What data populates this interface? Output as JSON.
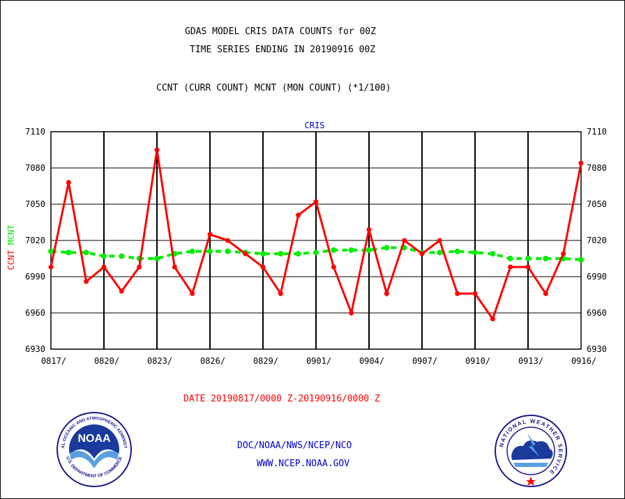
{
  "header": {
    "title_line1": "GDAS MODEL CRIS DATA COUNTS for 00Z",
    "title_line2": "TIME SERIES ENDING IN 20190916 00Z",
    "subtitle": "CCNT (CURR COUNT) MCNT (MON COUNT) (*1/100)"
  },
  "footer": {
    "date_range": "DATE 20190817/0000 Z-20190916/0000 Z",
    "org": "DOC/NOAA/NWS/NCEP/NCO",
    "url": "WWW.NCEP.NOAA.GOV"
  },
  "logos": {
    "noaa_text": "NOAA",
    "noaa_ring_top": "NATIONAL OCEANIC AND ATMOSPHERIC ADMINISTRATION",
    "noaa_ring_bottom": "U.S. DEPARTMENT OF COMMERCE",
    "nws_ring": "NATIONAL WEATHER SERVICE"
  },
  "colors": {
    "ccnt": "#ff0000",
    "mcnt": "#00ee00",
    "panel_title": "#0000cc",
    "footer_blue": "#0000cc",
    "date_red": "#ff0000"
  },
  "chart_data": {
    "type": "line",
    "title": "CRIS",
    "ylabel_series": [
      "CCNT",
      "MCNT"
    ],
    "ylim": [
      6930,
      7110
    ],
    "yticks": [
      6930,
      6960,
      6990,
      7020,
      7050,
      7080,
      7110
    ],
    "xtick_labels": [
      "0817/",
      "0820/",
      "0823/",
      "0826/",
      "0829/",
      "0901/",
      "0904/",
      "0907/",
      "0910/",
      "0913/",
      "0916/"
    ],
    "grid": true,
    "x": [
      "0817",
      "0818",
      "0819",
      "0820",
      "0821",
      "0822",
      "0823",
      "0824",
      "0825",
      "0826",
      "0827",
      "0828",
      "0829",
      "0830",
      "0831",
      "0901",
      "0902",
      "0903",
      "0904",
      "0905",
      "0906",
      "0907",
      "0908",
      "0909",
      "0910",
      "0911",
      "0912",
      "0913",
      "0914",
      "0915",
      "0916"
    ],
    "series": [
      {
        "name": "CCNT",
        "color": "#ff0000",
        "style": "solid",
        "values": [
          6998,
          7068,
          6986,
          6998,
          6978,
          6998,
          7095,
          6998,
          6976,
          7025,
          7020,
          7009,
          6998,
          6976,
          7041,
          7052,
          6998,
          6960,
          7029,
          6976,
          7020,
          7009,
          7020,
          6976,
          6976,
          6955,
          6998,
          6998,
          6976,
          7009,
          7084
        ]
      },
      {
        "name": "MCNT",
        "color": "#00ee00",
        "style": "dashed",
        "values": [
          7011,
          7010,
          7010,
          7007,
          7007,
          7005,
          7005,
          7009,
          7011,
          7011,
          7011,
          7010,
          7009,
          7009,
          7009,
          7010,
          7012,
          7012,
          7012,
          7014,
          7014,
          7010,
          7010,
          7011,
          7010,
          7009,
          7005,
          7005,
          7005,
          7005,
          7004
        ]
      }
    ]
  }
}
